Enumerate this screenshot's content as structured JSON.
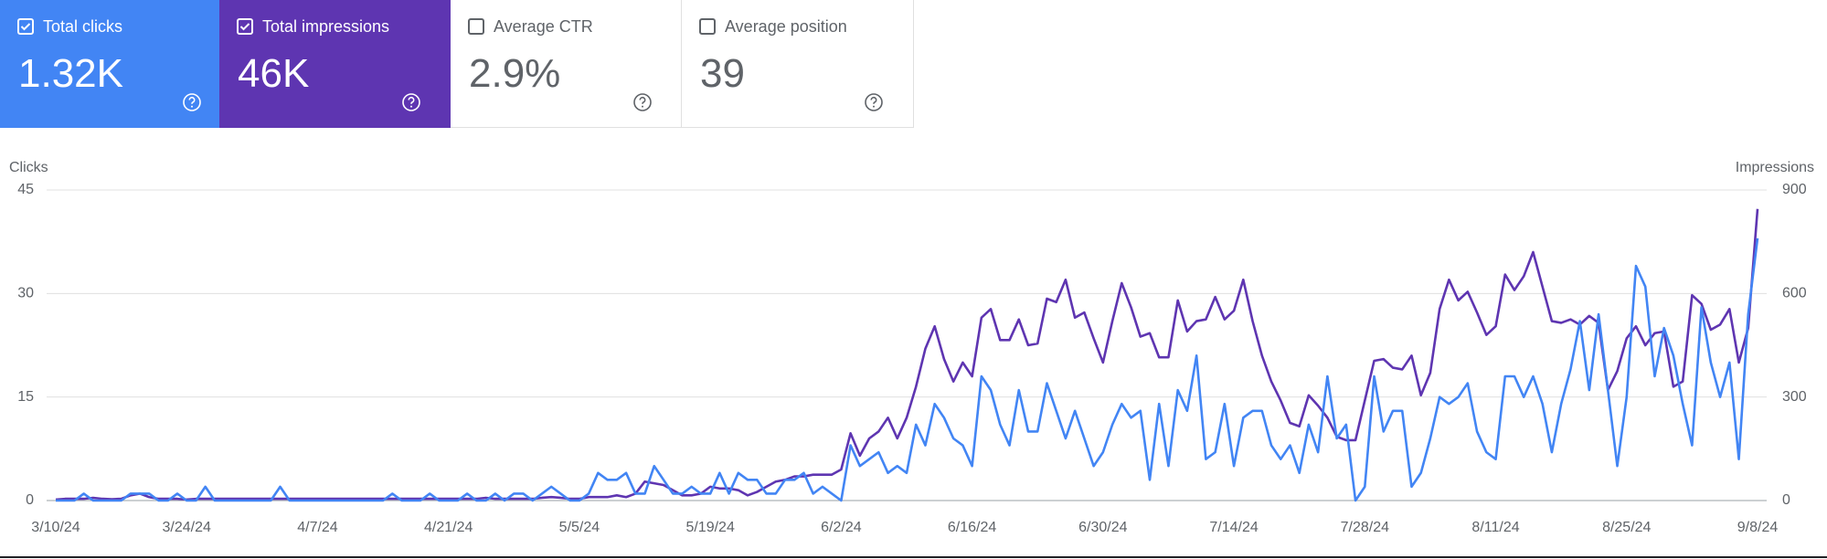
{
  "cards": [
    {
      "label": "Total clicks",
      "value": "1.32K",
      "selected": true,
      "color": "#4285f4"
    },
    {
      "label": "Total impressions",
      "value": "46K",
      "selected": true,
      "color": "#5e35b1"
    },
    {
      "label": "Average CTR",
      "value": "2.9%",
      "selected": false,
      "color": "#ffffff"
    },
    {
      "label": "Average position",
      "value": "39",
      "selected": false,
      "color": "#ffffff"
    }
  ],
  "chart_data": {
    "type": "line",
    "y_label": "Clicks",
    "y2_label": "Impressions",
    "categories": [
      "3/10/24",
      null,
      null,
      null,
      null,
      null,
      null,
      null,
      null,
      null,
      null,
      null,
      null,
      null,
      "3/24/24",
      null,
      null,
      null,
      null,
      null,
      null,
      null,
      null,
      null,
      null,
      null,
      null,
      null,
      "4/7/24",
      null,
      null,
      null,
      null,
      null,
      null,
      null,
      null,
      null,
      null,
      null,
      null,
      null,
      "4/21/24",
      null,
      null,
      null,
      null,
      null,
      null,
      null,
      null,
      null,
      null,
      null,
      null,
      null,
      "5/5/24",
      null,
      null,
      null,
      null,
      null,
      null,
      null,
      null,
      null,
      null,
      null,
      null,
      null,
      "5/19/24",
      null,
      null,
      null,
      null,
      null,
      null,
      null,
      null,
      null,
      null,
      null,
      null,
      null,
      "6/2/24",
      null,
      null,
      null,
      null,
      null,
      null,
      null,
      null,
      null,
      null,
      null,
      null,
      null,
      "6/16/24",
      null,
      null,
      null,
      null,
      null,
      null,
      null,
      null,
      null,
      null,
      null,
      null,
      null,
      "6/30/24",
      null,
      null,
      null,
      null,
      null,
      null,
      null,
      null,
      null,
      null,
      null,
      null,
      null,
      "7/14/24",
      null,
      null,
      null,
      null,
      null,
      null,
      null,
      null,
      null,
      null,
      null,
      null,
      null,
      "7/28/24",
      null,
      null,
      null,
      null,
      null,
      null,
      null,
      null,
      null,
      null,
      null,
      null,
      null,
      "8/11/24",
      null,
      null,
      null,
      null,
      null,
      null,
      null,
      null,
      null,
      null,
      null,
      null,
      null,
      "8/25/24",
      null,
      null,
      null,
      null,
      null,
      null,
      null,
      null,
      null,
      null,
      null,
      null,
      null,
      "9/8/24"
    ],
    "series": [
      {
        "name": "Impressions",
        "color": "#5e35b1",
        "axis": "y2",
        "values": [
          3,
          5,
          5,
          5,
          8,
          5,
          4,
          5,
          15,
          20,
          10,
          5,
          5,
          5,
          3,
          5,
          5,
          5,
          5,
          5,
          5,
          5,
          5,
          5,
          5,
          5,
          5,
          5,
          5,
          5,
          5,
          5,
          5,
          5,
          5,
          5,
          5,
          5,
          5,
          5,
          5,
          5,
          5,
          5,
          5,
          5,
          8,
          5,
          5,
          5,
          5,
          5,
          8,
          10,
          8,
          5,
          5,
          10,
          10,
          10,
          15,
          10,
          20,
          55,
          50,
          45,
          30,
          15,
          15,
          20,
          40,
          35,
          35,
          30,
          15,
          25,
          40,
          55,
          60,
          70,
          70,
          75,
          75,
          75,
          90,
          195,
          130,
          180,
          200,
          240,
          180,
          240,
          330,
          440,
          505,
          410,
          345,
          400,
          360,
          530,
          555,
          465,
          465,
          525,
          450,
          455,
          585,
          575,
          640,
          530,
          545,
          470,
          400,
          520,
          630,
          560,
          475,
          485,
          415,
          415,
          580,
          490,
          520,
          525,
          590,
          525,
          550,
          640,
          520,
          420,
          345,
          290,
          225,
          215,
          305,
          275,
          240,
          185,
          175,
          175,
          290,
          405,
          410,
          385,
          380,
          420,
          305,
          370,
          555,
          640,
          580,
          605,
          545,
          480,
          505,
          655,
          610,
          650,
          720,
          620,
          520,
          515,
          525,
          510,
          535,
          515,
          320,
          375,
          470,
          505,
          450,
          485,
          490,
          330,
          345,
          595,
          570,
          495,
          510,
          555,
          400,
          500,
          845
        ]
      },
      {
        "name": "Clicks",
        "color": "#4285f4",
        "values": [
          0,
          0,
          0,
          1,
          0,
          0,
          0,
          0,
          1,
          1,
          1,
          0,
          0,
          1,
          0,
          0,
          2,
          0,
          0,
          0,
          0,
          0,
          0,
          0,
          2,
          0,
          0,
          0,
          0,
          0,
          0,
          0,
          0,
          0,
          0,
          0,
          1,
          0,
          0,
          0,
          1,
          0,
          0,
          0,
          1,
          0,
          0,
          1,
          0,
          1,
          1,
          0,
          1,
          2,
          1,
          0,
          0,
          1,
          4,
          3,
          3,
          4,
          1,
          1,
          5,
          3,
          1,
          1,
          2,
          1,
          1,
          4,
          1,
          4,
          3,
          3,
          1,
          1,
          3,
          3,
          4,
          1,
          2,
          1,
          0,
          8,
          5,
          6,
          7,
          4,
          5,
          4,
          11,
          8,
          14,
          12,
          9,
          8,
          5,
          18,
          16,
          11,
          8,
          16,
          10,
          10,
          17,
          13,
          9,
          13,
          9,
          5,
          7,
          11,
          14,
          12,
          13,
          3,
          14,
          5,
          16,
          13,
          21,
          6,
          7,
          14,
          5,
          12,
          13,
          13,
          8,
          6,
          8,
          4,
          11,
          7,
          18,
          9,
          11,
          0,
          2,
          18,
          10,
          13,
          13,
          2,
          4,
          9,
          15,
          14,
          15,
          17,
          10,
          7,
          6,
          18,
          18,
          15,
          18,
          14,
          7,
          14,
          19,
          26,
          16,
          27,
          16,
          5,
          15,
          34,
          31,
          18,
          25,
          21,
          14,
          8,
          28,
          20,
          15,
          20,
          6,
          27,
          38
        ]
      }
    ],
    "ylim": [
      0,
      45
    ],
    "yticks": [
      0,
      15,
      30,
      45
    ],
    "y2lim": [
      0,
      900
    ],
    "y2ticks": [
      0,
      300,
      600,
      900
    ],
    "grid": true
  }
}
